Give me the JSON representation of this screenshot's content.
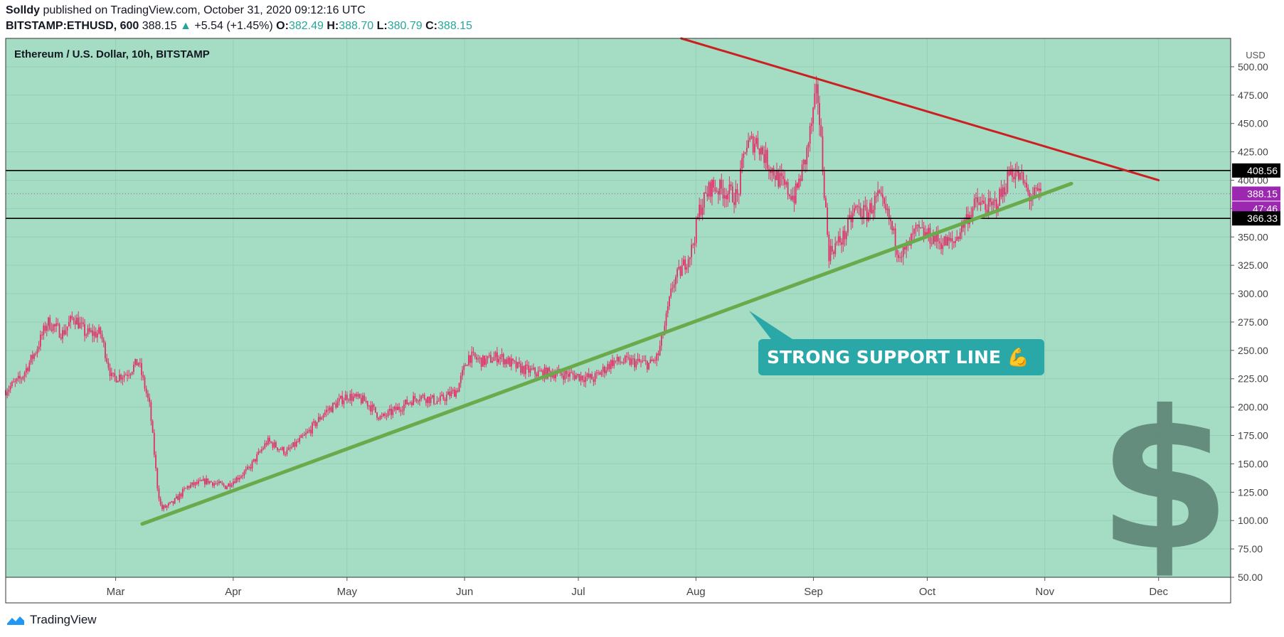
{
  "header": {
    "author": "Solldy",
    "published_text": "published on TradingView.com, October 31, 2020 09:12:16 UTC",
    "symbol": "BITSTAMP:ETHUSD, 600",
    "last": "388.15",
    "change": "+5.54 (+1.45%)",
    "o_label": "O:",
    "o": "382.49",
    "h_label": "H:",
    "h": "388.70",
    "l_label": "L:",
    "l": "380.79",
    "c_label": "C:",
    "c": "388.15"
  },
  "footer": {
    "brand": "TradingView"
  },
  "colors": {
    "chart_bg": "#a4dcc4",
    "candle": "#e0306a",
    "support": "#6aaa4a",
    "resistance": "#cc1f1f",
    "level_line": "#000000",
    "callout_bg": "#2aa8a8",
    "price_badge": "#9c27b0",
    "dollar": "#5e8576"
  },
  "chart_data": {
    "type": "candlestick",
    "title": "Ethereum / U.S. Dollar, 10h, BITSTAMP",
    "currency_label": "USD",
    "y_range": [
      50,
      525
    ],
    "y_ticks": [
      "50.00",
      "75.00",
      "100.00",
      "125.00",
      "150.00",
      "175.00",
      "200.00",
      "225.00",
      "250.00",
      "275.00",
      "300.00",
      "325.00",
      "350.00",
      "375.00",
      "400.00",
      "425.00",
      "450.00",
      "475.00",
      "500.00"
    ],
    "x_start": "2020-02-01",
    "x_end": "2020-12-20",
    "x_ticks": [
      {
        "label": "Mar",
        "date": "2020-03-01"
      },
      {
        "label": "Apr",
        "date": "2020-04-01"
      },
      {
        "label": "May",
        "date": "2020-05-01"
      },
      {
        "label": "Jun",
        "date": "2020-06-01"
      },
      {
        "label": "Jul",
        "date": "2020-07-01"
      },
      {
        "label": "Aug",
        "date": "2020-08-01"
      },
      {
        "label": "Sep",
        "date": "2020-09-01"
      },
      {
        "label": "Oct",
        "date": "2020-10-01"
      },
      {
        "label": "Nov",
        "date": "2020-11-01"
      },
      {
        "label": "Dec",
        "date": "2020-12-01"
      }
    ],
    "price_path": [
      [
        "2020-02-01",
        215
      ],
      [
        "2020-02-05",
        225
      ],
      [
        "2020-02-09",
        250
      ],
      [
        "2020-02-12",
        275
      ],
      [
        "2020-02-16",
        265
      ],
      [
        "2020-02-19",
        280
      ],
      [
        "2020-02-22",
        265
      ],
      [
        "2020-02-26",
        265
      ],
      [
        "2020-02-29",
        225
      ],
      [
        "2020-03-04",
        230
      ],
      [
        "2020-03-07",
        240
      ],
      [
        "2020-03-10",
        200
      ],
      [
        "2020-03-12",
        130
      ],
      [
        "2020-03-13",
        110
      ],
      [
        "2020-03-16",
        115
      ],
      [
        "2020-03-20",
        130
      ],
      [
        "2020-03-25",
        135
      ],
      [
        "2020-03-30",
        130
      ],
      [
        "2020-04-05",
        145
      ],
      [
        "2020-04-10",
        170
      ],
      [
        "2020-04-15",
        160
      ],
      [
        "2020-04-20",
        175
      ],
      [
        "2020-04-25",
        195
      ],
      [
        "2020-05-01",
        210
      ],
      [
        "2020-05-06",
        205
      ],
      [
        "2020-05-10",
        190
      ],
      [
        "2020-05-15",
        200
      ],
      [
        "2020-05-20",
        210
      ],
      [
        "2020-05-25",
        205
      ],
      [
        "2020-05-30",
        215
      ],
      [
        "2020-06-02",
        245
      ],
      [
        "2020-06-06",
        240
      ],
      [
        "2020-06-10",
        245
      ],
      [
        "2020-06-15",
        235
      ],
      [
        "2020-06-20",
        230
      ],
      [
        "2020-06-25",
        230
      ],
      [
        "2020-06-30",
        228
      ],
      [
        "2020-07-05",
        225
      ],
      [
        "2020-07-10",
        240
      ],
      [
        "2020-07-15",
        240
      ],
      [
        "2020-07-20",
        238
      ],
      [
        "2020-07-22",
        245
      ],
      [
        "2020-07-24",
        275
      ],
      [
        "2020-07-26",
        310
      ],
      [
        "2020-07-28",
        320
      ],
      [
        "2020-07-31",
        340
      ],
      [
        "2020-08-02",
        375
      ],
      [
        "2020-08-05",
        395
      ],
      [
        "2020-08-09",
        390
      ],
      [
        "2020-08-12",
        385
      ],
      [
        "2020-08-14",
        430
      ],
      [
        "2020-08-17",
        435
      ],
      [
        "2020-08-20",
        415
      ],
      [
        "2020-08-24",
        395
      ],
      [
        "2020-08-27",
        385
      ],
      [
        "2020-08-30",
        420
      ],
      [
        "2020-09-01",
        460
      ],
      [
        "2020-09-02",
        480
      ],
      [
        "2020-09-04",
        385
      ],
      [
        "2020-09-05",
        335
      ],
      [
        "2020-09-06",
        340
      ],
      [
        "2020-09-09",
        350
      ],
      [
        "2020-09-12",
        375
      ],
      [
        "2020-09-15",
        370
      ],
      [
        "2020-09-18",
        385
      ],
      [
        "2020-09-21",
        365
      ],
      [
        "2020-09-23",
        340
      ],
      [
        "2020-09-25",
        335
      ],
      [
        "2020-09-28",
        355
      ],
      [
        "2020-10-02",
        350
      ],
      [
        "2020-10-05",
        345
      ],
      [
        "2020-10-08",
        345
      ],
      [
        "2020-10-11",
        365
      ],
      [
        "2020-10-14",
        380
      ],
      [
        "2020-10-18",
        375
      ],
      [
        "2020-10-21",
        390
      ],
      [
        "2020-10-23",
        410
      ],
      [
        "2020-10-26",
        400
      ],
      [
        "2020-10-28",
        385
      ],
      [
        "2020-10-31",
        388
      ]
    ],
    "support_line": {
      "from": [
        "2020-03-08",
        97
      ],
      "to": [
        "2020-11-08",
        397
      ]
    },
    "resistance_line": {
      "from": [
        "2020-07-10",
        543
      ],
      "to": [
        "2020-12-01",
        400
      ]
    },
    "levels": [
      {
        "label": "408.56",
        "value": 408.56
      },
      {
        "label": "366.33",
        "value": 366.33
      }
    ],
    "last_price": {
      "label": "388.15",
      "value": 388.15
    },
    "countdown": {
      "label": "47:46",
      "value": 375
    },
    "annotation": {
      "text": "STRONG SUPPORT LINE 💪",
      "pointer": [
        "2020-08-15",
        285
      ]
    },
    "grid": true
  }
}
